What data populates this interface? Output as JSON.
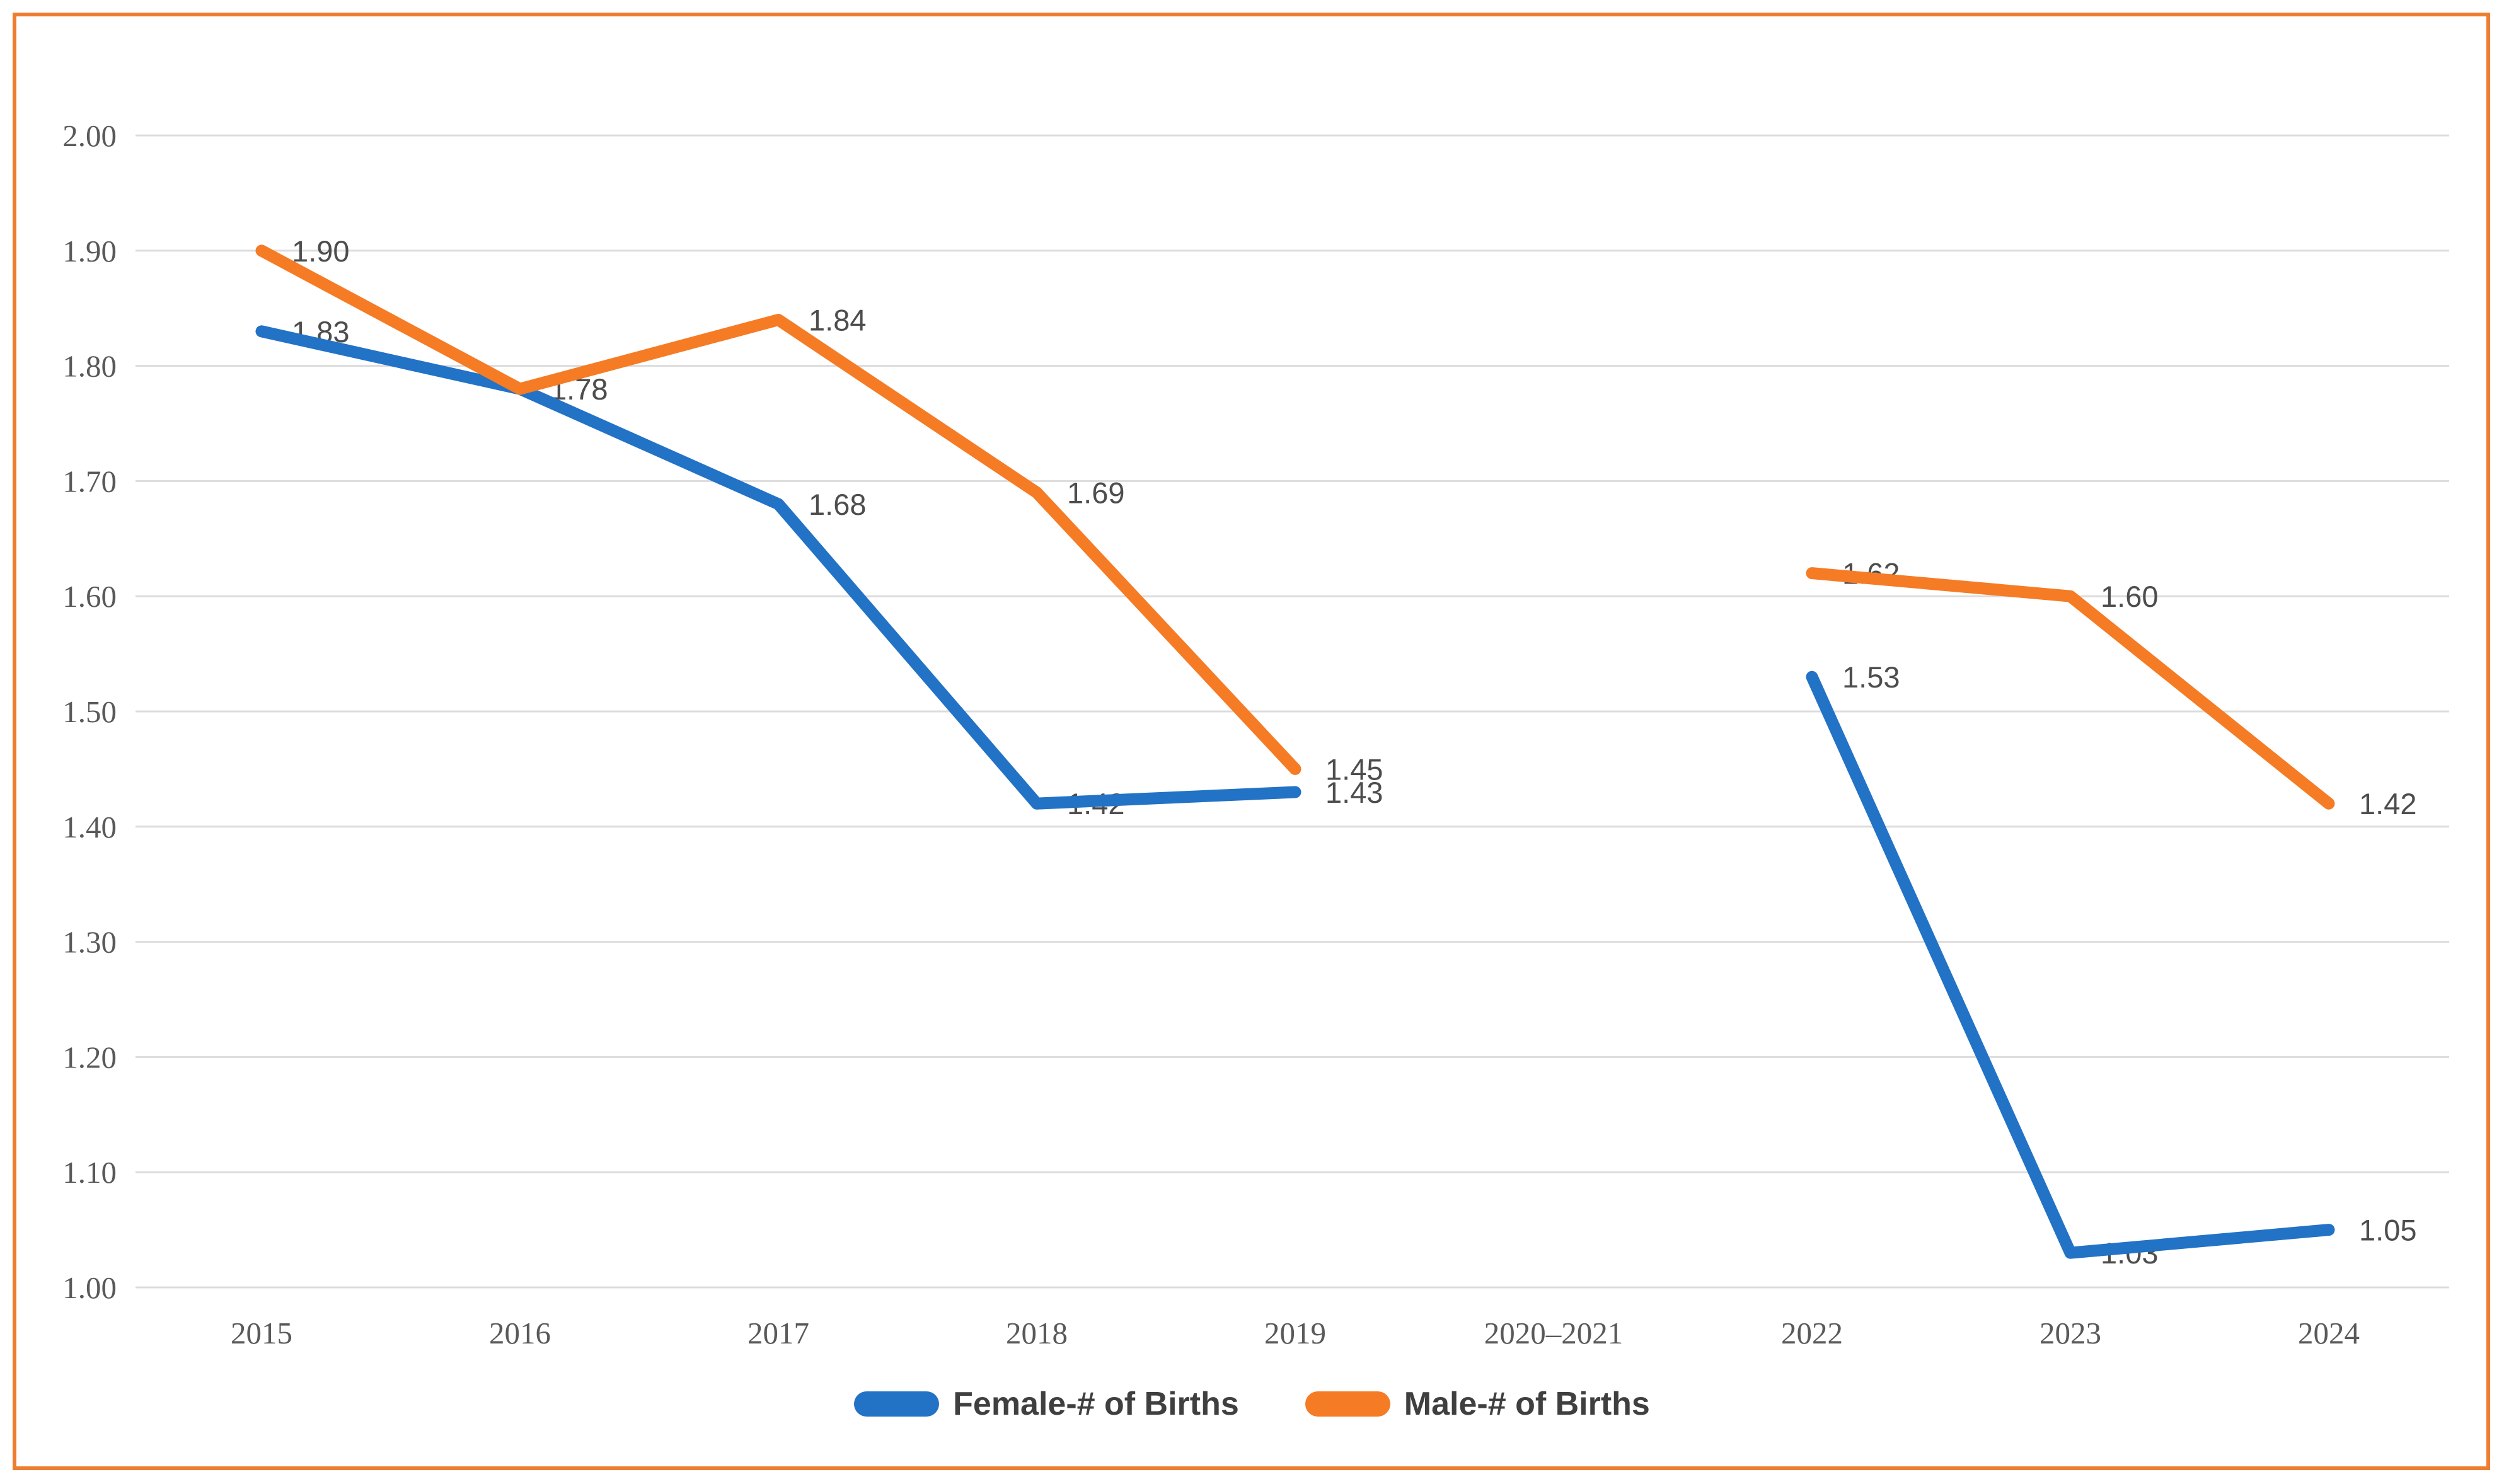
{
  "frame": {
    "border_color": "#EE7D31"
  },
  "chart_data": {
    "type": "line",
    "title": "",
    "xlabel": "",
    "ylabel": "",
    "categories": [
      "2015",
      "2016",
      "2017",
      "2018",
      "2019",
      "2020–2021",
      "2022",
      "2023",
      "2024"
    ],
    "series": [
      {
        "name": "Female-# of Births",
        "color": "#2272C6",
        "values": [
          1.83,
          1.78,
          1.68,
          1.42,
          1.43,
          null,
          1.53,
          1.03,
          1.05
        ]
      },
      {
        "name": "Male-# of Births",
        "color": "#F57B25",
        "values": [
          1.9,
          1.78,
          1.84,
          1.69,
          1.45,
          null,
          1.62,
          1.6,
          1.42
        ]
      }
    ],
    "ylim": [
      1.0,
      2.0
    ],
    "yticks": [
      "2.00",
      "1.90",
      "1.80",
      "1.70",
      "1.60",
      "1.50",
      "1.40",
      "1.30",
      "1.20",
      "1.10",
      "1.00"
    ],
    "grid": true,
    "gap_note": "no data plotted for 2020–2021 category",
    "legend_position": "bottom",
    "data_labels_shown": true,
    "grid_color": "#DCDCDC",
    "tick_text_color": "#595959",
    "data_label_text_color": "#4D4D4D",
    "legend_text_color": "#3F3F3F"
  }
}
